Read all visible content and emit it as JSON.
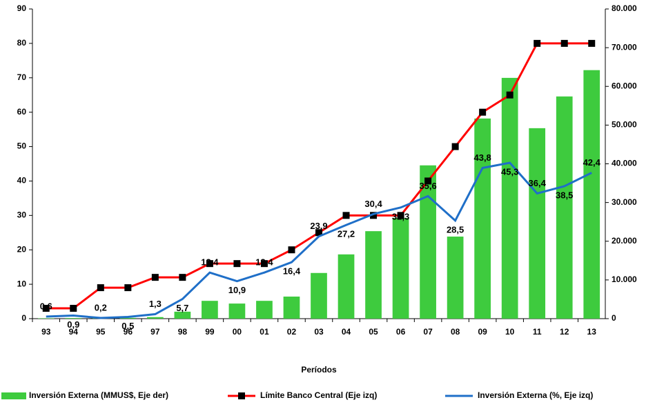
{
  "chart_data": {
    "type": "combo",
    "xlabel": "Períodos",
    "categories": [
      "93",
      "94",
      "95",
      "96",
      "97",
      "98",
      "99",
      "00",
      "01",
      "02",
      "03",
      "04",
      "05",
      "06",
      "07",
      "08",
      "09",
      "10",
      "11",
      "12",
      "13"
    ],
    "ylim": [
      0,
      90
    ],
    "yticks": [
      0,
      10,
      20,
      30,
      40,
      50,
      60,
      70,
      80,
      90
    ],
    "y2lim": [
      0,
      80000
    ],
    "y2ticks": [
      0,
      {
        "value": 10000,
        "label": "10.000"
      },
      {
        "value": 20000,
        "label": "20.000"
      },
      {
        "value": 30000,
        "label": "30.000"
      },
      {
        "value": 40000,
        "label": "40.000"
      },
      {
        "value": 50000,
        "label": "50.000"
      },
      {
        "value": 60000,
        "label": "60.000"
      },
      {
        "value": 70000,
        "label": "70.000"
      },
      {
        "value": 80000,
        "label": "80.000"
      }
    ],
    "series": [
      {
        "name": "Inversión Externa (MMUS$, Eje der)",
        "type": "bar",
        "axis": "y2",
        "color": "#3ecb3e",
        "values": [
          100,
          150,
          100,
          200,
          400,
          1800,
          4600,
          3900,
          4600,
          5700,
          11800,
          16600,
          22600,
          26000,
          39600,
          21200,
          51700,
          62200,
          49200,
          57400,
          64200
        ]
      },
      {
        "name": "Límite Banco Central (Eje izq)",
        "type": "line",
        "marker": "square",
        "color": "#ff0000",
        "values": [
          3,
          3,
          9,
          9,
          12,
          12,
          16,
          16,
          16,
          20,
          25,
          30,
          30,
          30,
          40,
          50,
          60,
          65,
          80,
          80,
          80
        ]
      },
      {
        "name": "Inversión Externa (%, Eje izq)",
        "type": "line",
        "color": "#1f6fc8",
        "values": [
          0.6,
          0.9,
          0.2,
          0.5,
          1.3,
          5.7,
          13.4,
          10.9,
          13.4,
          16.4,
          23.9,
          27.2,
          30.4,
          32.3,
          35.6,
          28.5,
          43.8,
          45.3,
          36.4,
          38.5,
          42.4
        ],
        "value_labels": [
          "0,6",
          "0,9",
          "0,2",
          "0,5",
          "1,3",
          "5,7",
          "13,4",
          "10,9",
          "13,4",
          "16,4",
          "23,9",
          "27,2",
          "30,4",
          "32,3",
          "35,6",
          "28,5",
          "43,8",
          "45,3",
          "36,4",
          "38,5",
          "42,4"
        ]
      }
    ]
  }
}
